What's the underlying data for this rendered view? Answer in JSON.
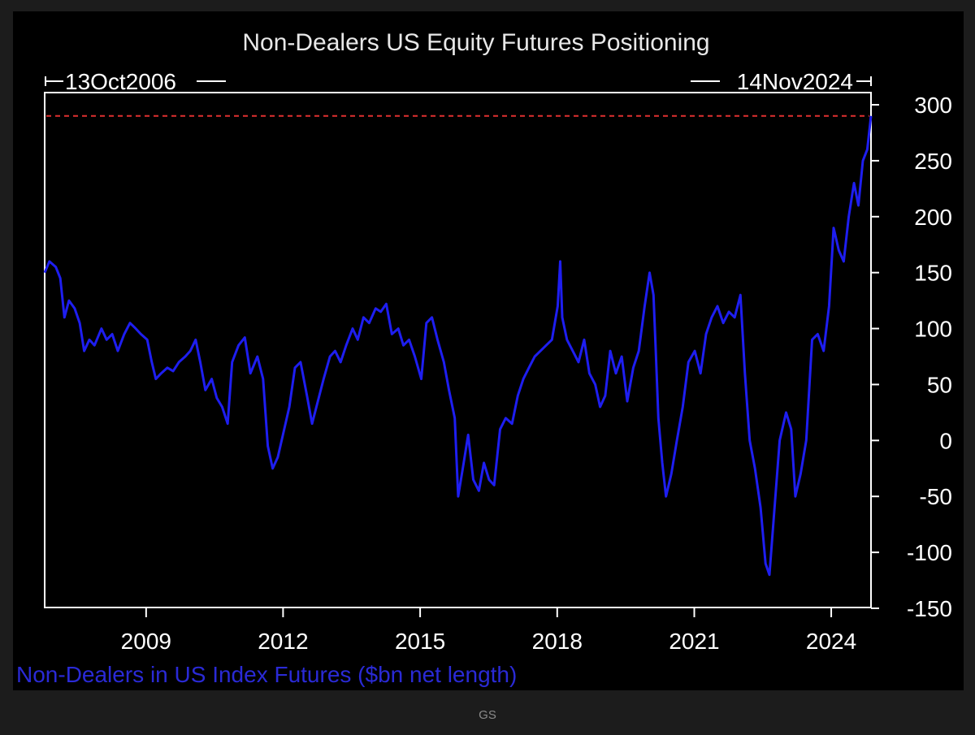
{
  "source": "GS",
  "chart_data": {
    "type": "line",
    "title": "Non-Dealers US Equity Futures Positioning",
    "start_label": "13Oct2006",
    "end_label": "14Nov2024",
    "x_start": "2006-10-13",
    "x_end": "2024-11-14",
    "xlim": [
      "2006-10-13",
      "2024-11-14"
    ],
    "x_ticks": [
      "2009",
      "2012",
      "2015",
      "2018",
      "2021",
      "2024"
    ],
    "ylim": [
      -150,
      300
    ],
    "y_ticks": [
      300,
      250,
      200,
      150,
      100,
      50,
      0,
      -50,
      -100,
      -150
    ],
    "reference_line": 290,
    "reference_line_color": "#e03030",
    "grid": false,
    "series": [
      {
        "name": "Non-Dealers in US Index Futures ($bn net length)",
        "color": "#1e1ef0",
        "points": [
          [
            "2006-10-13",
            150
          ],
          [
            "2006-11-20",
            160
          ],
          [
            "2007-01-10",
            155
          ],
          [
            "2007-02-15",
            145
          ],
          [
            "2007-03-20",
            110
          ],
          [
            "2007-04-25",
            125
          ],
          [
            "2007-06-10",
            118
          ],
          [
            "2007-07-20",
            105
          ],
          [
            "2007-08-25",
            80
          ],
          [
            "2007-10-05",
            90
          ],
          [
            "2007-11-15",
            85
          ],
          [
            "2008-01-10",
            100
          ],
          [
            "2008-02-20",
            90
          ],
          [
            "2008-04-05",
            95
          ],
          [
            "2008-05-20",
            80
          ],
          [
            "2008-07-10",
            95
          ],
          [
            "2008-08-25",
            105
          ],
          [
            "2008-10-10",
            100
          ],
          [
            "2008-11-20",
            95
          ],
          [
            "2009-01-10",
            90
          ],
          [
            "2009-02-15",
            70
          ],
          [
            "2009-03-20",
            55
          ],
          [
            "2009-05-01",
            60
          ],
          [
            "2009-06-20",
            65
          ],
          [
            "2009-08-05",
            62
          ],
          [
            "2009-09-20",
            70
          ],
          [
            "2009-11-10",
            75
          ],
          [
            "2009-12-20",
            80
          ],
          [
            "2010-02-01",
            90
          ],
          [
            "2010-03-10",
            70
          ],
          [
            "2010-04-20",
            45
          ],
          [
            "2010-06-10",
            55
          ],
          [
            "2010-07-20",
            38
          ],
          [
            "2010-09-01",
            30
          ],
          [
            "2010-10-15",
            15
          ],
          [
            "2010-11-20",
            70
          ],
          [
            "2011-01-10",
            85
          ],
          [
            "2011-03-01",
            92
          ],
          [
            "2011-04-15",
            60
          ],
          [
            "2011-06-10",
            75
          ],
          [
            "2011-07-25",
            55
          ],
          [
            "2011-09-01",
            -5
          ],
          [
            "2011-10-10",
            -25
          ],
          [
            "2011-11-20",
            -15
          ],
          [
            "2012-01-10",
            10
          ],
          [
            "2012-02-20",
            30
          ],
          [
            "2012-04-05",
            65
          ],
          [
            "2012-05-20",
            70
          ],
          [
            "2012-07-10",
            40
          ],
          [
            "2012-08-20",
            15
          ],
          [
            "2012-10-05",
            35
          ],
          [
            "2012-11-20",
            55
          ],
          [
            "2013-01-10",
            75
          ],
          [
            "2013-02-20",
            80
          ],
          [
            "2013-04-05",
            70
          ],
          [
            "2013-05-20",
            85
          ],
          [
            "2013-07-10",
            100
          ],
          [
            "2013-08-20",
            90
          ],
          [
            "2013-10-05",
            110
          ],
          [
            "2013-11-20",
            105
          ],
          [
            "2014-01-10",
            118
          ],
          [
            "2014-02-20",
            115
          ],
          [
            "2014-04-05",
            122
          ],
          [
            "2014-05-20",
            95
          ],
          [
            "2014-07-10",
            100
          ],
          [
            "2014-08-20",
            85
          ],
          [
            "2014-10-05",
            90
          ],
          [
            "2014-11-20",
            75
          ],
          [
            "2015-01-10",
            55
          ],
          [
            "2015-02-20",
            105
          ],
          [
            "2015-04-05",
            110
          ],
          [
            "2015-05-20",
            90
          ],
          [
            "2015-07-10",
            70
          ],
          [
            "2015-08-20",
            45
          ],
          [
            "2015-10-05",
            20
          ],
          [
            "2015-11-01",
            -50
          ],
          [
            "2015-12-15",
            -20
          ],
          [
            "2016-01-20",
            5
          ],
          [
            "2016-03-01",
            -35
          ],
          [
            "2016-04-15",
            -45
          ],
          [
            "2016-05-25",
            -20
          ],
          [
            "2016-07-05",
            -35
          ],
          [
            "2016-08-15",
            -40
          ],
          [
            "2016-10-01",
            10
          ],
          [
            "2016-11-15",
            20
          ],
          [
            "2017-01-05",
            15
          ],
          [
            "2017-02-20",
            40
          ],
          [
            "2017-04-05",
            55
          ],
          [
            "2017-05-20",
            65
          ],
          [
            "2017-07-05",
            75
          ],
          [
            "2017-08-20",
            80
          ],
          [
            "2017-10-05",
            85
          ],
          [
            "2017-11-20",
            90
          ],
          [
            "2018-01-05",
            120
          ],
          [
            "2018-01-25",
            160
          ],
          [
            "2018-02-10",
            110
          ],
          [
            "2018-03-20",
            90
          ],
          [
            "2018-05-05",
            80
          ],
          [
            "2018-06-20",
            70
          ],
          [
            "2018-08-05",
            90
          ],
          [
            "2018-09-15",
            60
          ],
          [
            "2018-11-01",
            50
          ],
          [
            "2018-12-10",
            30
          ],
          [
            "2019-01-20",
            40
          ],
          [
            "2019-03-01",
            80
          ],
          [
            "2019-04-15",
            60
          ],
          [
            "2019-06-01",
            75
          ],
          [
            "2019-07-15",
            35
          ],
          [
            "2019-09-01",
            65
          ],
          [
            "2019-10-15",
            80
          ],
          [
            "2019-12-01",
            120
          ],
          [
            "2020-01-10",
            150
          ],
          [
            "2020-02-10",
            130
          ],
          [
            "2020-02-28",
            80
          ],
          [
            "2020-03-20",
            20
          ],
          [
            "2020-04-20",
            -20
          ],
          [
            "2020-05-20",
            -50
          ],
          [
            "2020-07-01",
            -30
          ],
          [
            "2020-08-15",
            0
          ],
          [
            "2020-10-01",
            30
          ],
          [
            "2020-11-15",
            70
          ],
          [
            "2021-01-05",
            80
          ],
          [
            "2021-02-20",
            60
          ],
          [
            "2021-04-05",
            95
          ],
          [
            "2021-05-20",
            110
          ],
          [
            "2021-07-05",
            120
          ],
          [
            "2021-08-20",
            105
          ],
          [
            "2021-10-05",
            115
          ],
          [
            "2021-11-20",
            110
          ],
          [
            "2022-01-05",
            130
          ],
          [
            "2022-02-10",
            60
          ],
          [
            "2022-03-20",
            0
          ],
          [
            "2022-05-01",
            -25
          ],
          [
            "2022-06-15",
            -60
          ],
          [
            "2022-07-25",
            -110
          ],
          [
            "2022-08-25",
            -120
          ],
          [
            "2022-10-05",
            -60
          ],
          [
            "2022-11-15",
            0
          ],
          [
            "2023-01-05",
            25
          ],
          [
            "2023-02-15",
            10
          ],
          [
            "2023-03-20",
            -50
          ],
          [
            "2023-05-01",
            -30
          ],
          [
            "2023-06-15",
            0
          ],
          [
            "2023-08-01",
            90
          ],
          [
            "2023-09-15",
            95
          ],
          [
            "2023-11-01",
            80
          ],
          [
            "2023-12-15",
            120
          ],
          [
            "2024-01-20",
            190
          ],
          [
            "2024-03-01",
            170
          ],
          [
            "2024-04-10",
            160
          ],
          [
            "2024-05-20",
            200
          ],
          [
            "2024-07-01",
            230
          ],
          [
            "2024-08-05",
            210
          ],
          [
            "2024-09-10",
            250
          ],
          [
            "2024-10-15",
            260
          ],
          [
            "2024-11-14",
            290
          ]
        ]
      }
    ]
  }
}
